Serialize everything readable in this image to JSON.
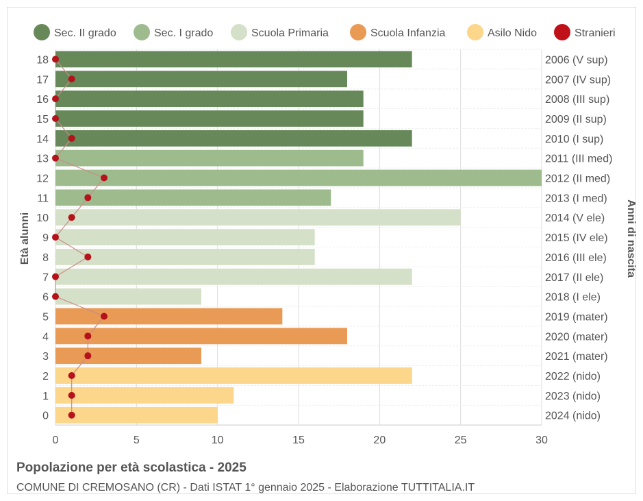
{
  "chart_data": {
    "type": "bar",
    "orientation": "horizontal",
    "title": "Popolazione per età scolastica - 2025",
    "subtitle": "COMUNE DI CREMOSANO (CR) - Dati ISTAT 1° gennaio 2025 - Elaborazione TUTTITALIA.IT",
    "ylabel_left": "Età alunni",
    "ylabel_right": "Anni di nascita",
    "xlim": [
      0,
      30
    ],
    "xticks": [
      0,
      5,
      10,
      15,
      20,
      25,
      30
    ],
    "grid": true,
    "legend_position": "top",
    "legend": [
      {
        "name": "Sec. II grado",
        "color": "#67895a"
      },
      {
        "name": "Sec. I grado",
        "color": "#9ebb8e"
      },
      {
        "name": "Scuola Primaria",
        "color": "#d5e0c8"
      },
      {
        "name": "Scuola Infanzia",
        "color": "#e99a55"
      },
      {
        "name": "Asilo Nido",
        "color": "#fcd68a"
      },
      {
        "name": "Stranieri",
        "color": "#c0101a"
      }
    ],
    "ages": [
      18,
      17,
      16,
      15,
      14,
      13,
      12,
      11,
      10,
      9,
      8,
      7,
      6,
      5,
      4,
      3,
      2,
      1,
      0
    ],
    "birth_years": [
      "2006 (V sup)",
      "2007 (IV sup)",
      "2008 (III sup)",
      "2009 (II sup)",
      "2010 (I sup)",
      "2011 (III med)",
      "2012 (II med)",
      "2013 (I med)",
      "2014 (V ele)",
      "2015 (IV ele)",
      "2016 (III ele)",
      "2017 (II ele)",
      "2018 (I ele)",
      "2019 (mater)",
      "2020 (mater)",
      "2021 (mater)",
      "2022 (nido)",
      "2023 (nido)",
      "2024 (nido)"
    ],
    "series": [
      {
        "name": "Sec. II grado",
        "ages": [
          18,
          17,
          16,
          15,
          14
        ],
        "values": [
          22,
          18,
          19,
          19,
          22
        ]
      },
      {
        "name": "Sec. I grado",
        "ages": [
          13,
          12,
          11
        ],
        "values": [
          19,
          30,
          17
        ]
      },
      {
        "name": "Scuola Primaria",
        "ages": [
          10,
          9,
          8,
          7,
          6
        ],
        "values": [
          25,
          16,
          16,
          22,
          9
        ]
      },
      {
        "name": "Scuola Infanzia",
        "ages": [
          5,
          4,
          3
        ],
        "values": [
          14,
          18,
          9
        ]
      },
      {
        "name": "Asilo Nido",
        "ages": [
          2,
          1,
          0
        ],
        "values": [
          22,
          11,
          10
        ]
      }
    ],
    "stranieri": {
      "name": "Stranieri",
      "values": [
        0,
        1,
        0,
        0,
        1,
        0,
        3,
        2,
        1,
        0,
        2,
        0,
        0,
        3,
        2,
        2,
        1,
        1,
        1
      ]
    }
  }
}
